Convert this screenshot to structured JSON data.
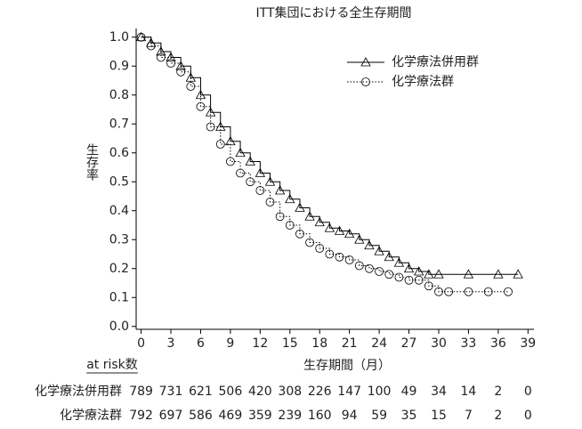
{
  "chart_data": {
    "type": "line",
    "step": true,
    "title": "ITT集団における全生存期間",
    "y_label": "生存率",
    "x_label": "生存期間（月）",
    "xlim": [
      -0.5,
      39.6
    ],
    "ylim": [
      -0.01,
      1.03
    ],
    "xticks": [
      0,
      3,
      6,
      9,
      12,
      15,
      18,
      21,
      24,
      27,
      30,
      33,
      36,
      39
    ],
    "yticks": [
      {
        "value": 0,
        "label": "0.0"
      },
      0.1,
      0.2,
      0.3,
      0.4,
      0.5,
      0.6,
      0.7,
      0.8,
      0.9,
      {
        "value": 1,
        "label": "1.0"
      }
    ],
    "legend": "upper right",
    "series": [
      {
        "name": "化学療法併用群",
        "color": "#000000",
        "marker": "triangle",
        "dash": "solid",
        "x": [
          0,
          1,
          2,
          3,
          4,
          5,
          6,
          7,
          8,
          9,
          10,
          11,
          12,
          13,
          14,
          15,
          16,
          17,
          18,
          19,
          20,
          21,
          22,
          23,
          24,
          25,
          26,
          27,
          28,
          29,
          30,
          33,
          36,
          38
        ],
        "values": [
          1.0,
          0.98,
          0.95,
          0.93,
          0.9,
          0.86,
          0.8,
          0.74,
          0.69,
          0.64,
          0.6,
          0.57,
          0.53,
          0.5,
          0.47,
          0.44,
          0.41,
          0.38,
          0.36,
          0.34,
          0.33,
          0.32,
          0.3,
          0.28,
          0.26,
          0.24,
          0.22,
          0.2,
          0.19,
          0.18,
          0.18,
          0.18,
          0.18,
          0.18
        ]
      },
      {
        "name": "化学療法群",
        "color": "#000000",
        "marker": "circle",
        "dash": "dotted",
        "x": [
          0,
          1,
          2,
          3,
          4,
          5,
          6,
          7,
          8,
          9,
          10,
          11,
          12,
          13,
          14,
          15,
          16,
          17,
          18,
          19,
          20,
          21,
          22,
          23,
          24,
          25,
          26,
          27,
          28,
          29,
          30,
          31,
          33,
          35,
          37
        ],
        "values": [
          1.0,
          0.97,
          0.93,
          0.91,
          0.88,
          0.83,
          0.76,
          0.69,
          0.63,
          0.57,
          0.53,
          0.5,
          0.47,
          0.43,
          0.38,
          0.35,
          0.32,
          0.29,
          0.27,
          0.25,
          0.24,
          0.23,
          0.21,
          0.2,
          0.19,
          0.18,
          0.17,
          0.16,
          0.16,
          0.14,
          0.12,
          0.12,
          0.12,
          0.12,
          0.12
        ]
      }
    ],
    "risk_table": {
      "title": "at risk数",
      "rows": [
        {
          "name": "化学療法併用群",
          "values": [
            789,
            731,
            621,
            506,
            420,
            308,
            226,
            147,
            100,
            49,
            34,
            14,
            2,
            0
          ]
        },
        {
          "name": "化学療法群",
          "values": [
            792,
            697,
            586,
            469,
            359,
            239,
            160,
            94,
            59,
            35,
            15,
            7,
            2,
            0
          ]
        }
      ]
    }
  }
}
